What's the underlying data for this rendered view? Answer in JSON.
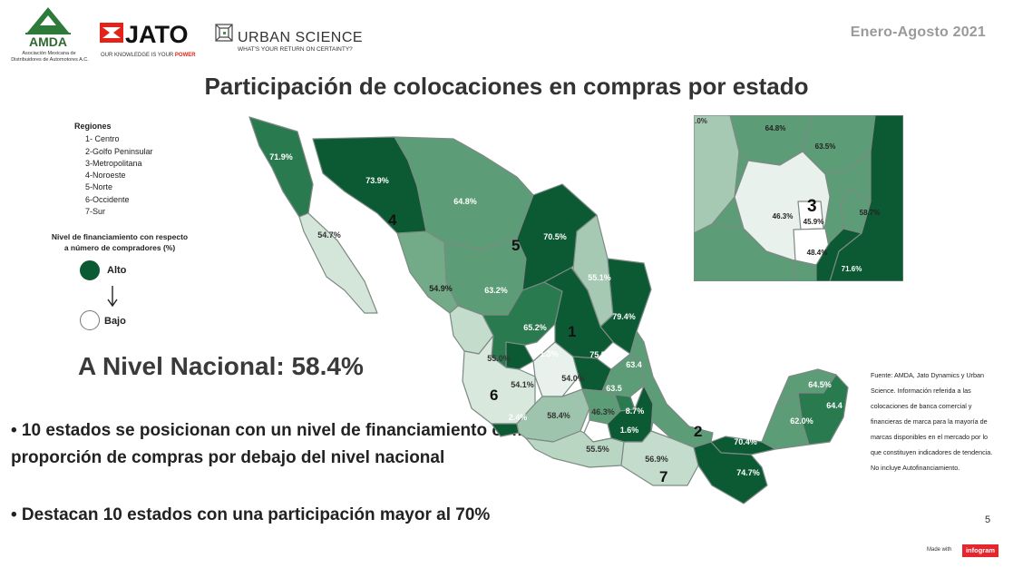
{
  "logos": {
    "amda_text": "AMDA",
    "amda_sub1": "Asociación Mexicana de",
    "amda_sub2": "Distribuidores de Automotores A.C.",
    "jato_text": "JATO",
    "jato_tag_a": "OUR KNOWLEDGE IS YOUR",
    "jato_tag_b": "POWER",
    "us_text": "URBAN SCIENCE",
    "us_tag": "WHAT'S YOUR RETURN ON CERTAINTY?"
  },
  "period": "Enero-Agosto  2021",
  "title": "Participación de colocaciones en compras por estado",
  "regions": {
    "heading": "Regiones",
    "items": [
      "1- Centro",
      "2-Golfo Peninsular",
      "3-Metropolitana",
      "4-Noroeste",
      "5-Norte",
      "6-Occidente",
      "7-Sur"
    ]
  },
  "legend": {
    "title_line1": "Nivel de financiamiento con respecto",
    "title_line2": "a número de compradores (%)",
    "high": "Alto",
    "low": "Bajo",
    "high_color": "#0b5a34",
    "low_color": "#ffffff"
  },
  "national": "A Nivel Nacional: 58.4%",
  "bullets": [
    "• 10 estados se posicionan con un nivel de financiamiento como proporción de compras por debajo del nivel nacional",
    "• Destacan 10 estados con una participación mayor al 70%"
  ],
  "source": "Fuente: AMDA, Jato Dynamics y Urban Science. Información referida a las colocaciones de banca comercial y financieras de marca para la mayoría de marcas disponibles en el mercado por lo que constituyen indicadores de tendencia. No incluye Autofinanciamiento.",
  "page_number": "5",
  "made_with": "Made with",
  "infogram": "infogram",
  "map": {
    "region_numbers": {
      "r1": "1",
      "r2": "2",
      "r3": "3",
      "r4": "4",
      "r5": "5",
      "r6": "6",
      "r7": "7"
    },
    "states": {
      "bc": "71.9%",
      "bcs": "54.7%",
      "son": "73.9%",
      "chih": "64.8%",
      "coah": "70.5%",
      "nl": "55.1%",
      "tamps": "79.4%",
      "sin": "54.9%",
      "dgo": "63.2%",
      "zac": "65.2%",
      "slp": "",
      "nay": "55.0%",
      "ags": "71.3%",
      "jal": "54.1%",
      "gto": "54.0%",
      "qro": "75.5%",
      "hgo": "63.4",
      "col": "2.4%",
      "mich": "58.4%",
      "mex": "63.5",
      "mor": "46.3%",
      "tlax": "8.7%",
      "pue": "1.6%",
      "gro": "55.5%",
      "oax": "56.9%",
      "ver": "",
      "tab": "70.4%",
      "chis": "74.7%",
      "camp": "62.0%",
      "yuc": "64.5%",
      "qroo": "64.4"
    },
    "inset": {
      "tl": ".0%",
      "a": "64.8%",
      "b": "63.5%",
      "c": "58.7%",
      "d": "46.3%",
      "e": "45.9%",
      "f": "48.4%",
      "g": "71.6%"
    }
  }
}
